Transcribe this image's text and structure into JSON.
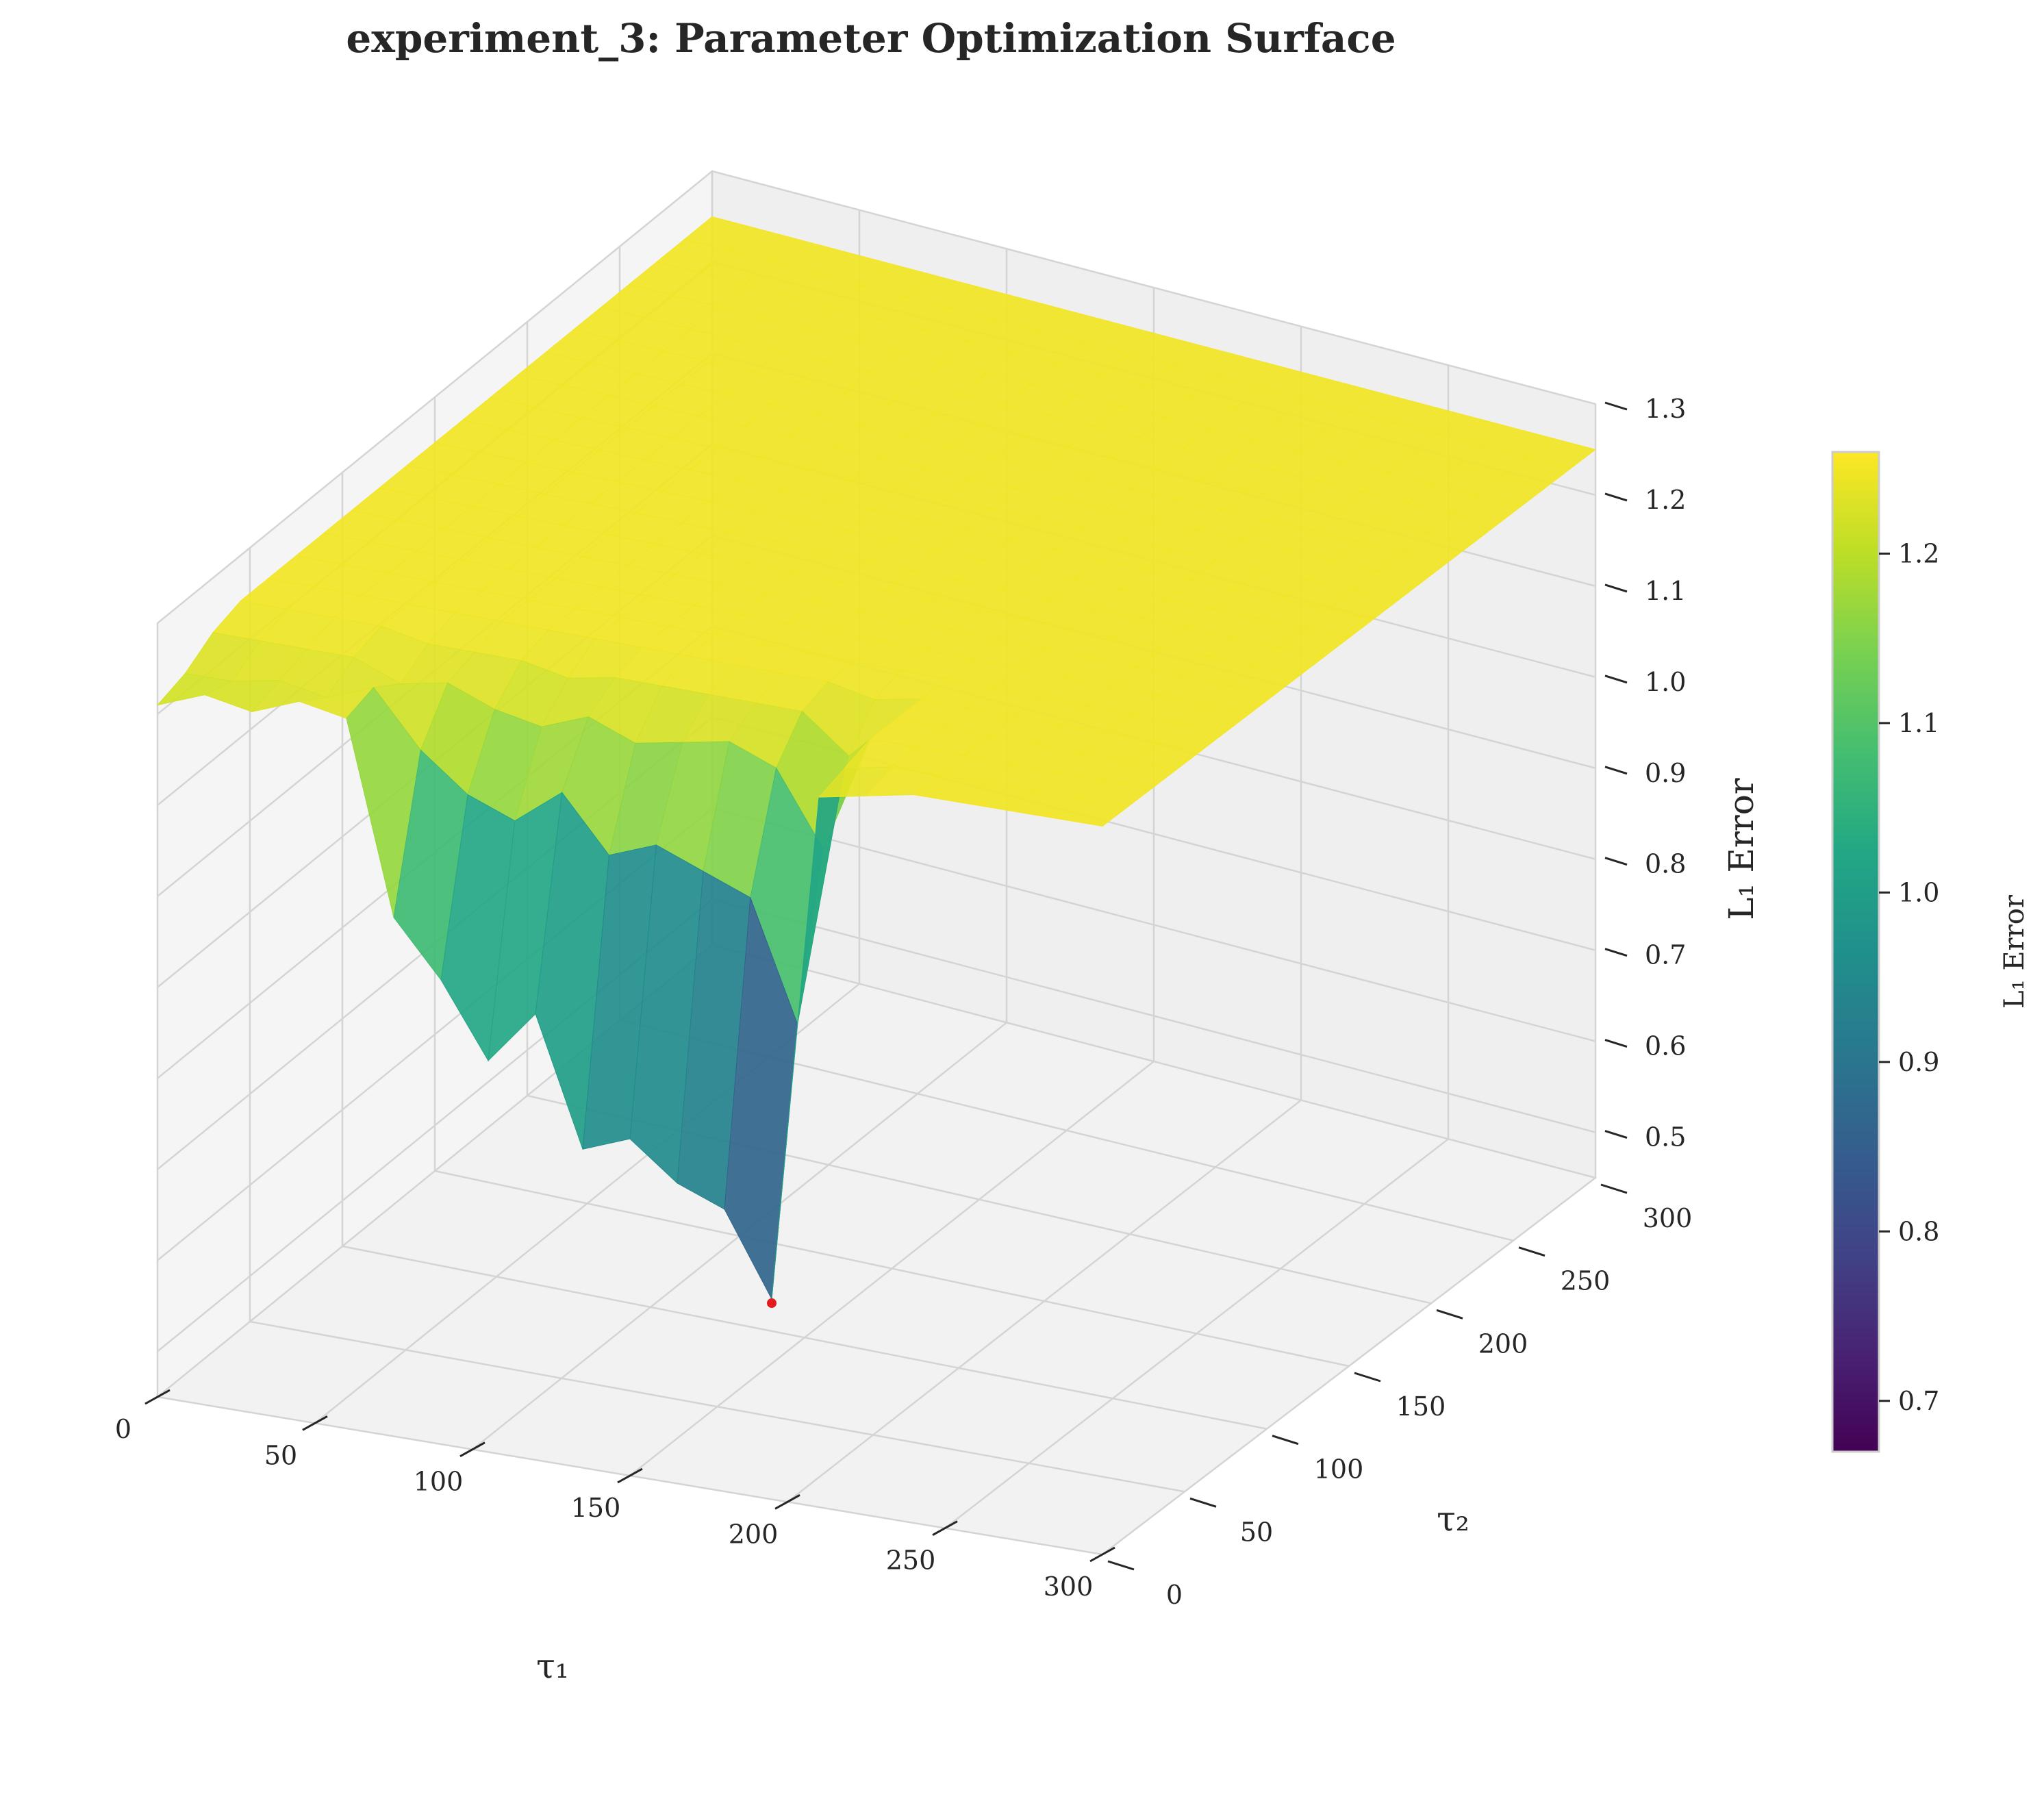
{
  "chart_data": {
    "type": "surface3d",
    "title": "experiment_3: Parameter Optimization Surface",
    "xlabel": "τ₁",
    "ylabel": "τ₂",
    "zlabel": "L₁ Error",
    "colorbar_label": "L₁ Error",
    "colormap": "viridis",
    "xlim": [
      0,
      300
    ],
    "ylim": [
      0,
      300
    ],
    "zlim": [
      0.45,
      1.3
    ],
    "x_ticks": [
      "0",
      "50",
      "100",
      "150",
      "200",
      "250",
      "300"
    ],
    "y_ticks": [
      "0",
      "50",
      "100",
      "150",
      "200",
      "250",
      "300"
    ],
    "z_ticks": [
      "0.5",
      "0.6",
      "0.7",
      "0.8",
      "0.9",
      "1.0",
      "1.1",
      "1.2",
      "1.3"
    ],
    "colorbar_ticks": [
      "0.7",
      "0.8",
      "0.9",
      "1.0",
      "1.1",
      "1.2"
    ],
    "colorbar_range": [
      0.67,
      1.26
    ],
    "grid": true,
    "surface": {
      "x": [
        0,
        15,
        30,
        45,
        60,
        75,
        90,
        105,
        120,
        135,
        150,
        165,
        180,
        195,
        210,
        225,
        240,
        255,
        270,
        285,
        300
      ],
      "y": [
        0,
        15,
        30,
        45,
        60,
        75,
        90,
        105,
        120,
        135,
        150,
        165,
        180,
        195,
        210,
        225,
        240,
        255,
        270,
        285,
        300
      ],
      "z_description": "values in data units",
      "z": [
        [
          1.21,
          1.22,
          1.24,
          1.25,
          1.25,
          1.25,
          1.25,
          1.25,
          1.25,
          1.25,
          1.25,
          1.25,
          1.25,
          1.25,
          1.25,
          1.25,
          1.25,
          1.25,
          1.25,
          1.25,
          1.25
        ],
        [
          1.23,
          1.22,
          1.24,
          1.25,
          1.25,
          1.25,
          1.25,
          1.25,
          1.25,
          1.25,
          1.25,
          1.25,
          1.25,
          1.25,
          1.25,
          1.25,
          1.25,
          1.25,
          1.25,
          1.25,
          1.25
        ],
        [
          1.22,
          1.23,
          1.24,
          1.25,
          1.25,
          1.25,
          1.25,
          1.25,
          1.25,
          1.25,
          1.25,
          1.25,
          1.25,
          1.25,
          1.25,
          1.25,
          1.25,
          1.25,
          1.25,
          1.25,
          1.25
        ],
        [
          1.24,
          1.22,
          1.24,
          1.25,
          1.25,
          1.25,
          1.25,
          1.25,
          1.25,
          1.25,
          1.25,
          1.25,
          1.25,
          1.25,
          1.25,
          1.25,
          1.25,
          1.25,
          1.25,
          1.25,
          1.25
        ],
        [
          1.23,
          1.24,
          1.22,
          1.24,
          1.25,
          1.25,
          1.25,
          1.25,
          1.25,
          1.25,
          1.25,
          1.25,
          1.25,
          1.25,
          1.25,
          1.25,
          1.25,
          1.25,
          1.25,
          1.25,
          1.25
        ],
        [
          1.02,
          1.18,
          1.23,
          1.24,
          1.25,
          1.25,
          1.25,
          1.25,
          1.25,
          1.25,
          1.25,
          1.25,
          1.25,
          1.25,
          1.25,
          1.25,
          1.25,
          1.25,
          1.25,
          1.25,
          1.25
        ],
        [
          0.96,
          1.14,
          1.21,
          1.24,
          1.25,
          1.25,
          1.25,
          1.25,
          1.25,
          1.25,
          1.25,
          1.25,
          1.25,
          1.25,
          1.25,
          1.25,
          1.25,
          1.25,
          1.25,
          1.25,
          1.25
        ],
        [
          0.88,
          1.12,
          1.2,
          1.23,
          1.25,
          1.25,
          1.25,
          1.25,
          1.25,
          1.25,
          1.25,
          1.25,
          1.25,
          1.25,
          1.25,
          1.25,
          1.25,
          1.25,
          1.25,
          1.25,
          1.25
        ],
        [
          0.94,
          1.16,
          1.22,
          1.24,
          1.25,
          1.25,
          1.25,
          1.25,
          1.25,
          1.25,
          1.25,
          1.25,
          1.25,
          1.25,
          1.25,
          1.25,
          1.25,
          1.25,
          1.25,
          1.25,
          1.25
        ],
        [
          0.8,
          1.1,
          1.2,
          1.24,
          1.25,
          1.25,
          1.25,
          1.25,
          1.25,
          1.25,
          1.25,
          1.25,
          1.25,
          1.25,
          1.25,
          1.25,
          1.25,
          1.25,
          1.25,
          1.25,
          1.25
        ],
        [
          0.82,
          1.12,
          1.21,
          1.24,
          1.25,
          1.25,
          1.25,
          1.25,
          1.25,
          1.25,
          1.25,
          1.25,
          1.25,
          1.25,
          1.25,
          1.25,
          1.25,
          1.25,
          1.25,
          1.25,
          1.25
        ],
        [
          0.78,
          1.1,
          1.22,
          1.24,
          1.25,
          1.25,
          1.25,
          1.25,
          1.25,
          1.25,
          1.25,
          1.25,
          1.25,
          1.25,
          1.25,
          1.25,
          1.25,
          1.25,
          1.25,
          1.25,
          1.25
        ],
        [
          0.76,
          1.08,
          1.2,
          1.24,
          1.25,
          1.25,
          1.25,
          1.25,
          1.25,
          1.25,
          1.25,
          1.25,
          1.25,
          1.25,
          1.25,
          1.25,
          1.25,
          1.25,
          1.25,
          1.25,
          1.25
        ],
        [
          0.67,
          0.95,
          1.12,
          1.2,
          1.24,
          1.25,
          1.25,
          1.25,
          1.25,
          1.25,
          1.25,
          1.25,
          1.25,
          1.25,
          1.25,
          1.25,
          1.25,
          1.25,
          1.25,
          1.25,
          1.25
        ],
        [
          1.23,
          1.24,
          1.25,
          1.25,
          1.25,
          1.25,
          1.25,
          1.25,
          1.25,
          1.25,
          1.25,
          1.25,
          1.25,
          1.25,
          1.25,
          1.25,
          1.25,
          1.25,
          1.25,
          1.25,
          1.25
        ],
        [
          1.24,
          1.25,
          1.25,
          1.25,
          1.25,
          1.25,
          1.25,
          1.25,
          1.25,
          1.25,
          1.25,
          1.25,
          1.25,
          1.25,
          1.25,
          1.25,
          1.25,
          1.25,
          1.25,
          1.25,
          1.25
        ],
        [
          1.25,
          1.25,
          1.25,
          1.25,
          1.25,
          1.25,
          1.25,
          1.25,
          1.25,
          1.25,
          1.25,
          1.25,
          1.25,
          1.25,
          1.25,
          1.25,
          1.25,
          1.25,
          1.25,
          1.25,
          1.25
        ],
        [
          1.25,
          1.25,
          1.25,
          1.25,
          1.25,
          1.25,
          1.25,
          1.25,
          1.25,
          1.25,
          1.25,
          1.25,
          1.25,
          1.25,
          1.25,
          1.25,
          1.25,
          1.25,
          1.25,
          1.25,
          1.25
        ],
        [
          1.25,
          1.25,
          1.25,
          1.25,
          1.25,
          1.25,
          1.25,
          1.25,
          1.25,
          1.25,
          1.25,
          1.25,
          1.25,
          1.25,
          1.25,
          1.25,
          1.25,
          1.25,
          1.25,
          1.25,
          1.25
        ],
        [
          1.25,
          1.25,
          1.25,
          1.25,
          1.25,
          1.25,
          1.25,
          1.25,
          1.25,
          1.25,
          1.25,
          1.25,
          1.25,
          1.25,
          1.25,
          1.25,
          1.25,
          1.25,
          1.25,
          1.25,
          1.25
        ],
        [
          1.25,
          1.25,
          1.25,
          1.25,
          1.25,
          1.25,
          1.25,
          1.25,
          1.25,
          1.25,
          1.25,
          1.25,
          1.25,
          1.25,
          1.25,
          1.25,
          1.25,
          1.25,
          1.25,
          1.25,
          1.25
        ]
      ]
    },
    "best_point": {
      "x": 195,
      "y": 0,
      "z": 0.67,
      "color": "#e41a1c"
    }
  }
}
